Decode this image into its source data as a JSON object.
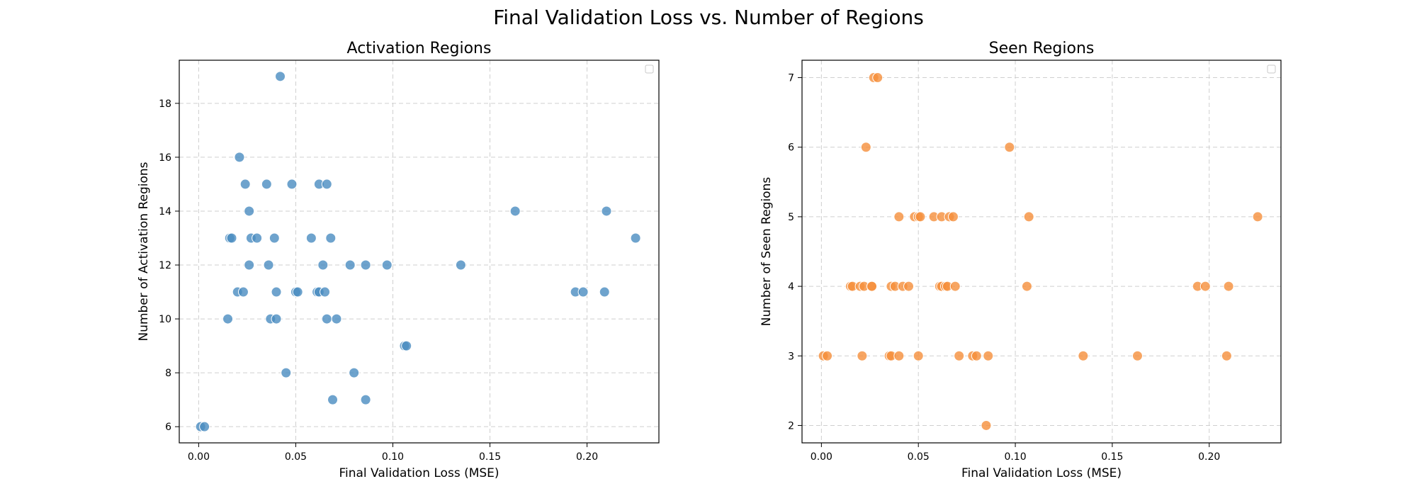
{
  "figure": {
    "title": "Final Validation Loss vs. Number of Regions"
  },
  "chart_data": [
    {
      "type": "scatter",
      "title": "Activation Regions",
      "xlabel": "Final Validation Loss (MSE)",
      "ylabel": "Number of Activation Regions",
      "xlim": [
        -0.01,
        0.237
      ],
      "ylim": [
        5.4,
        19.6
      ],
      "xticks": [
        0.0,
        0.05,
        0.1,
        0.15,
        0.2
      ],
      "xtick_labels": [
        "0.00",
        "0.05",
        "0.10",
        "0.15",
        "0.20"
      ],
      "yticks": [
        6,
        8,
        10,
        12,
        14,
        16,
        18
      ],
      "ytick_labels": [
        "6",
        "8",
        "10",
        "12",
        "14",
        "16",
        "18"
      ],
      "grid": true,
      "legend": "top-right (empty)",
      "color": "#4a8cc0",
      "points": [
        [
          0.001,
          6
        ],
        [
          0.003,
          6
        ],
        [
          0.042,
          19
        ],
        [
          0.021,
          16
        ],
        [
          0.024,
          15
        ],
        [
          0.035,
          15
        ],
        [
          0.048,
          15
        ],
        [
          0.062,
          15
        ],
        [
          0.066,
          15
        ],
        [
          0.026,
          14
        ],
        [
          0.163,
          14
        ],
        [
          0.21,
          14
        ],
        [
          0.016,
          13
        ],
        [
          0.017,
          13
        ],
        [
          0.027,
          13
        ],
        [
          0.03,
          13
        ],
        [
          0.039,
          13
        ],
        [
          0.058,
          13
        ],
        [
          0.068,
          13
        ],
        [
          0.225,
          13
        ],
        [
          0.026,
          12
        ],
        [
          0.036,
          12
        ],
        [
          0.064,
          12
        ],
        [
          0.078,
          12
        ],
        [
          0.086,
          12
        ],
        [
          0.097,
          12
        ],
        [
          0.135,
          12
        ],
        [
          0.02,
          11
        ],
        [
          0.023,
          11
        ],
        [
          0.04,
          11
        ],
        [
          0.05,
          11
        ],
        [
          0.051,
          11
        ],
        [
          0.061,
          11
        ],
        [
          0.062,
          11
        ],
        [
          0.065,
          11
        ],
        [
          0.194,
          11
        ],
        [
          0.198,
          11
        ],
        [
          0.209,
          11
        ],
        [
          0.015,
          10
        ],
        [
          0.037,
          10
        ],
        [
          0.04,
          10
        ],
        [
          0.066,
          10
        ],
        [
          0.071,
          10
        ],
        [
          0.106,
          9
        ],
        [
          0.107,
          9
        ],
        [
          0.045,
          8
        ],
        [
          0.08,
          8
        ],
        [
          0.069,
          7
        ],
        [
          0.086,
          7
        ]
      ]
    },
    {
      "type": "scatter",
      "title": "Seen Regions",
      "xlabel": "Final Validation Loss (MSE)",
      "ylabel": "Number of Seen Regions",
      "xlim": [
        -0.01,
        0.237
      ],
      "ylim": [
        1.75,
        7.25
      ],
      "xticks": [
        0.0,
        0.05,
        0.1,
        0.15,
        0.2
      ],
      "xtick_labels": [
        "0.00",
        "0.05",
        "0.10",
        "0.15",
        "0.20"
      ],
      "yticks": [
        2,
        3,
        4,
        5,
        6,
        7
      ],
      "ytick_labels": [
        "2",
        "3",
        "4",
        "5",
        "6",
        "7"
      ],
      "grid": true,
      "legend": "top-right (empty)",
      "color": "#f58f3b",
      "points": [
        [
          0.027,
          7
        ],
        [
          0.029,
          7
        ],
        [
          0.023,
          6
        ],
        [
          0.097,
          6
        ],
        [
          0.04,
          5
        ],
        [
          0.048,
          5
        ],
        [
          0.05,
          5
        ],
        [
          0.051,
          5
        ],
        [
          0.058,
          5
        ],
        [
          0.062,
          5
        ],
        [
          0.066,
          5
        ],
        [
          0.068,
          5
        ],
        [
          0.107,
          5
        ],
        [
          0.225,
          5
        ],
        [
          0.015,
          4
        ],
        [
          0.016,
          4
        ],
        [
          0.02,
          4
        ],
        [
          0.022,
          4
        ],
        [
          0.026,
          4
        ],
        [
          0.026,
          4
        ],
        [
          0.036,
          4
        ],
        [
          0.038,
          4
        ],
        [
          0.042,
          4
        ],
        [
          0.045,
          4
        ],
        [
          0.061,
          4
        ],
        [
          0.062,
          4
        ],
        [
          0.064,
          4
        ],
        [
          0.065,
          4
        ],
        [
          0.069,
          4
        ],
        [
          0.106,
          4
        ],
        [
          0.194,
          4
        ],
        [
          0.198,
          4
        ],
        [
          0.21,
          4
        ],
        [
          0.001,
          3
        ],
        [
          0.003,
          3
        ],
        [
          0.021,
          3
        ],
        [
          0.035,
          3
        ],
        [
          0.036,
          3
        ],
        [
          0.04,
          3
        ],
        [
          0.05,
          3
        ],
        [
          0.071,
          3
        ],
        [
          0.078,
          3
        ],
        [
          0.08,
          3
        ],
        [
          0.086,
          3
        ],
        [
          0.135,
          3
        ],
        [
          0.163,
          3
        ],
        [
          0.209,
          3
        ],
        [
          0.085,
          2
        ]
      ]
    }
  ]
}
